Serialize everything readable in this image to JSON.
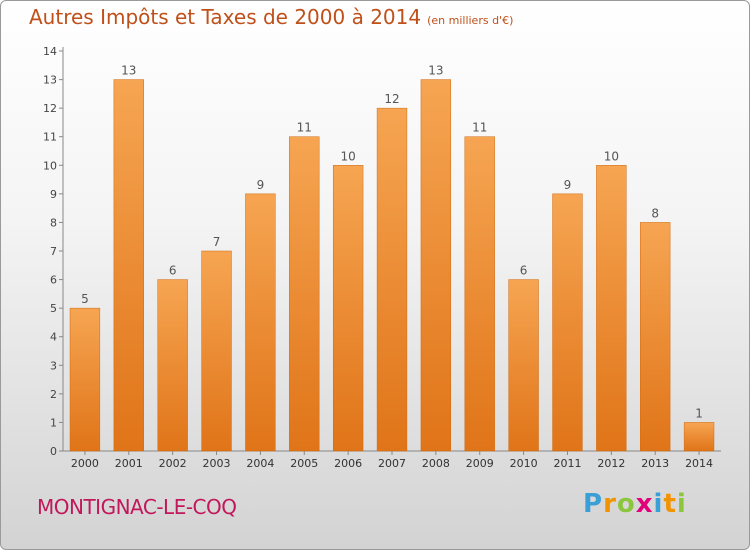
{
  "header": {
    "title": "Autres Impôts et Taxes de 2000 à 2014",
    "subtitle": "(en milliers d'€)"
  },
  "footer": {
    "commune": "MONTIGNAC-LE-COQ",
    "logo_letters": [
      "P",
      "r",
      "o",
      "x",
      "i",
      "t",
      "i"
    ],
    "logo_colors": [
      "#3a9fd6",
      "#f29400",
      "#8cc63f",
      "#e2007a",
      "#3a9fd6",
      "#f29400",
      "#8cc63f"
    ]
  },
  "chart_data": {
    "type": "bar",
    "title": "Autres Impôts et Taxes de 2000 à 2014",
    "categories": [
      "2000",
      "2001",
      "2002",
      "2003",
      "2004",
      "2005",
      "2006",
      "2007",
      "2008",
      "2009",
      "2010",
      "2011",
      "2012",
      "2013",
      "2014"
    ],
    "values": [
      5,
      13,
      6,
      7,
      9,
      11,
      10,
      12,
      13,
      11,
      6,
      9,
      10,
      8,
      1
    ],
    "ylim": [
      0,
      14
    ],
    "yticks": [
      0,
      1,
      2,
      3,
      4,
      5,
      6,
      7,
      8,
      9,
      10,
      11,
      12,
      13,
      14
    ],
    "grid": false,
    "bar_color_top": "#f6a552",
    "bar_color_bottom": "#e07418",
    "title_color": "#c0501a",
    "commune_color": "#c2185b"
  }
}
